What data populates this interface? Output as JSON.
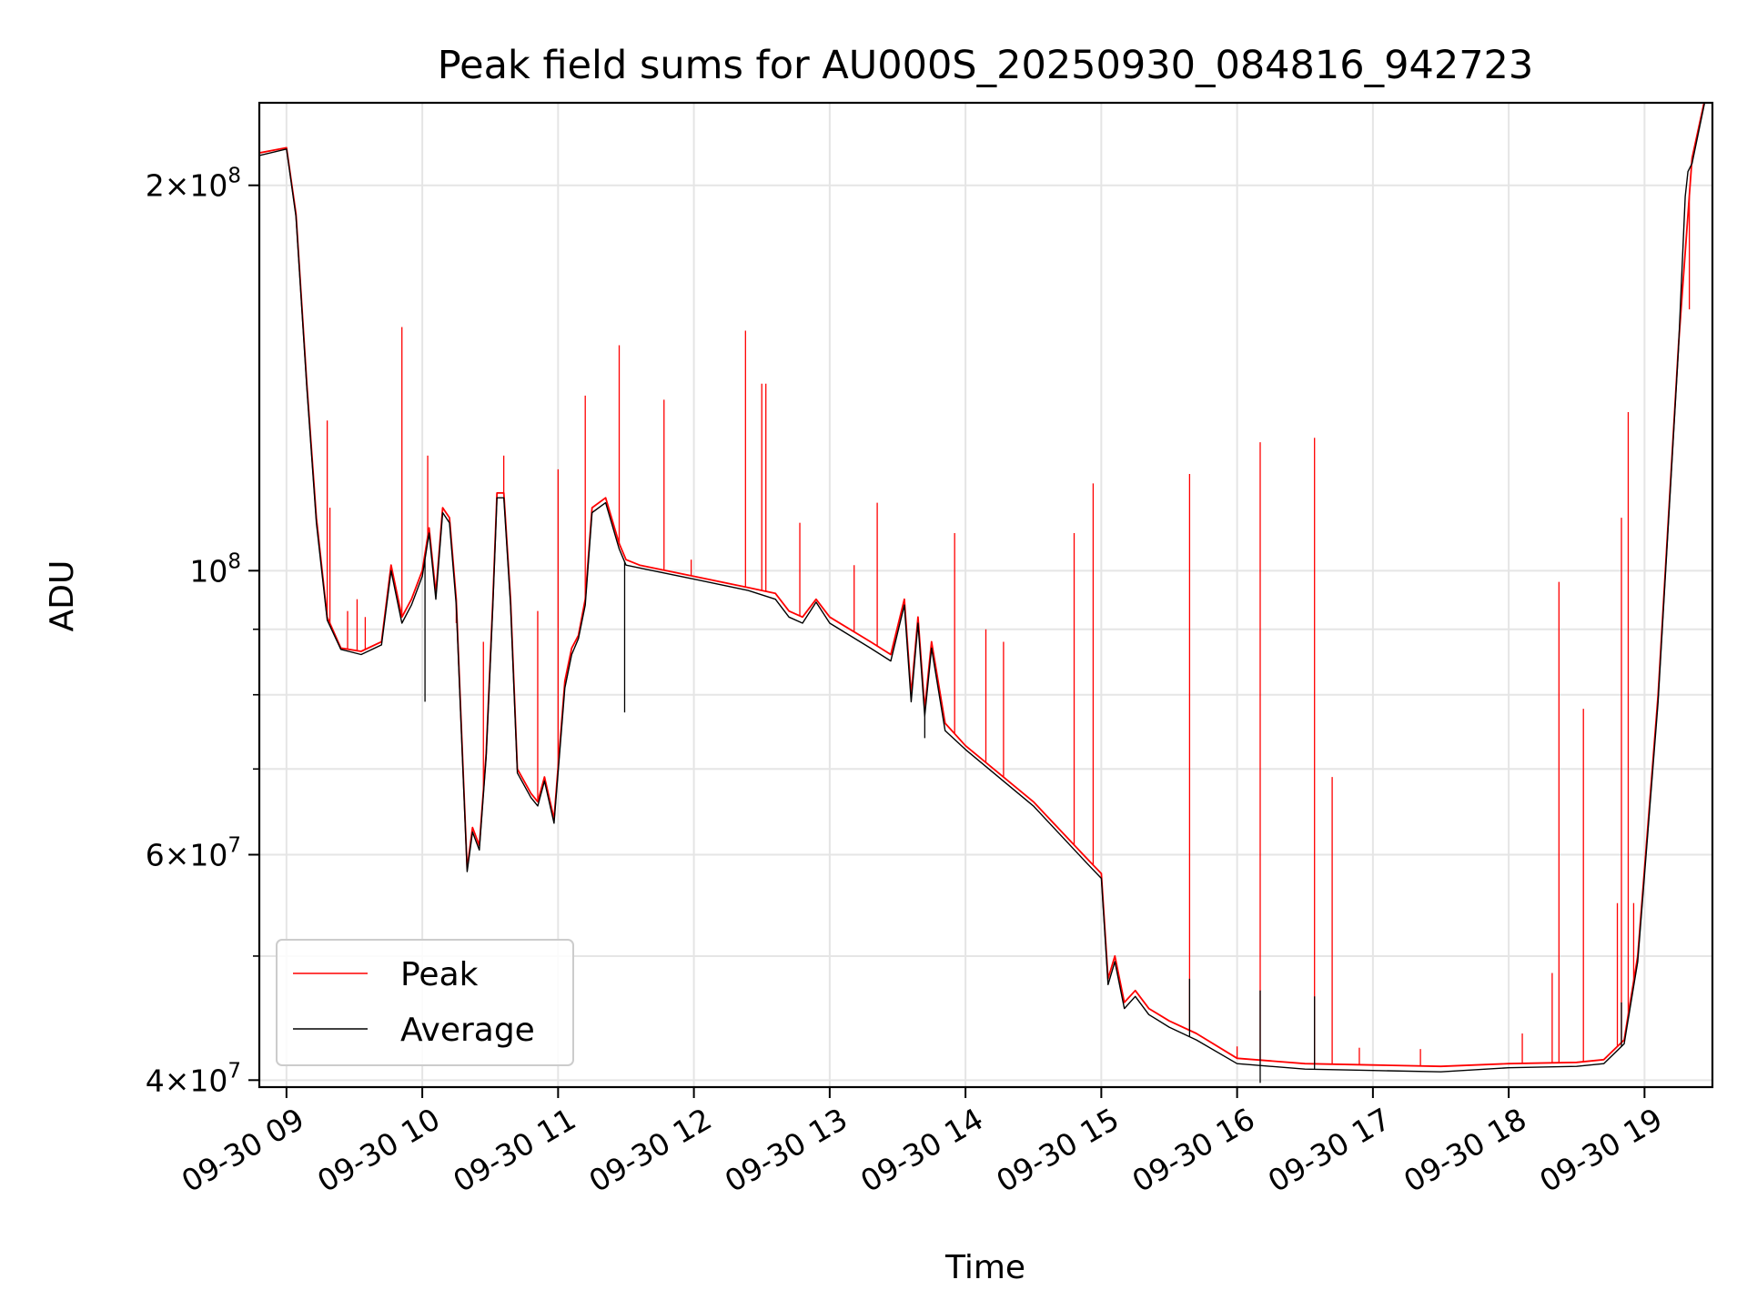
{
  "chart_data": {
    "type": "line",
    "title": "Peak field sums for AU000S_20250930_084816_942723",
    "xlabel": "Time",
    "ylabel": "ADU",
    "x_axis": {
      "unit": "hours (2025-09-30)",
      "range": [
        8.8,
        19.5
      ],
      "ticks": [
        {
          "value": 9,
          "label": "09-30 09"
        },
        {
          "value": 10,
          "label": "09-30 10"
        },
        {
          "value": 11,
          "label": "09-30 11"
        },
        {
          "value": 12,
          "label": "09-30 12"
        },
        {
          "value": 13,
          "label": "09-30 13"
        },
        {
          "value": 14,
          "label": "09-30 14"
        },
        {
          "value": 15,
          "label": "09-30 15"
        },
        {
          "value": 16,
          "label": "09-30 16"
        },
        {
          "value": 17,
          "label": "09-30 17"
        },
        {
          "value": 18,
          "label": "09-30 18"
        },
        {
          "value": 19,
          "label": "09-30 19"
        }
      ]
    },
    "y_axis": {
      "scale": "log",
      "range": [
        39500000,
        232000000
      ],
      "major_ticks": [
        {
          "value": 40000000,
          "mantissa": "4",
          "exponent": "7"
        },
        {
          "value": 60000000,
          "mantissa": "6",
          "exponent": "7"
        },
        {
          "value": 100000000,
          "mantissa": "",
          "exponent": "8"
        },
        {
          "value": 200000000,
          "mantissa": "2",
          "exponent": "8"
        }
      ],
      "minor_ticks": [
        50000000,
        70000000,
        80000000,
        90000000
      ]
    },
    "grid": true,
    "legend_position": "lower-left",
    "series": [
      {
        "name": "Peak",
        "color": "#ff0000",
        "baseline": [
          [
            8.8,
            212000000
          ],
          [
            9.0,
            214000000
          ],
          [
            9.07,
            190000000
          ],
          [
            9.15,
            140000000
          ],
          [
            9.22,
            110000000
          ],
          [
            9.3,
            92000000
          ],
          [
            9.4,
            87000000
          ],
          [
            9.55,
            86500000
          ],
          [
            9.7,
            88000000
          ],
          [
            9.77,
            101000000
          ],
          [
            9.85,
            92000000
          ],
          [
            9.92,
            95000000
          ],
          [
            10.0,
            100000000
          ],
          [
            10.05,
            108000000
          ],
          [
            10.1,
            96000000
          ],
          [
            10.15,
            112000000
          ],
          [
            10.2,
            110000000
          ],
          [
            10.25,
            95000000
          ],
          [
            10.3,
            70000000
          ],
          [
            10.33,
            58500000
          ],
          [
            10.37,
            63000000
          ],
          [
            10.42,
            61000000
          ],
          [
            10.47,
            72000000
          ],
          [
            10.52,
            95000000
          ],
          [
            10.55,
            115000000
          ],
          [
            10.6,
            115000000
          ],
          [
            10.65,
            95000000
          ],
          [
            10.7,
            70000000
          ],
          [
            10.8,
            67000000
          ],
          [
            10.85,
            66000000
          ],
          [
            10.9,
            69000000
          ],
          [
            10.97,
            64000000
          ],
          [
            11.05,
            82000000
          ],
          [
            11.1,
            87000000
          ],
          [
            11.15,
            89000000
          ],
          [
            11.2,
            95000000
          ],
          [
            11.25,
            112000000
          ],
          [
            11.35,
            114000000
          ],
          [
            11.45,
            105000000
          ],
          [
            11.5,
            102000000
          ],
          [
            11.6,
            101000000
          ],
          [
            12.0,
            99000000
          ],
          [
            12.4,
            97000000
          ],
          [
            12.6,
            96000000
          ],
          [
            12.7,
            93000000
          ],
          [
            12.8,
            92000000
          ],
          [
            12.9,
            95000000
          ],
          [
            13.0,
            92000000
          ],
          [
            13.3,
            88000000
          ],
          [
            13.45,
            86000000
          ],
          [
            13.55,
            95000000
          ],
          [
            13.6,
            80000000
          ],
          [
            13.65,
            92000000
          ],
          [
            13.7,
            78000000
          ],
          [
            13.75,
            88000000
          ],
          [
            13.85,
            76000000
          ],
          [
            14.0,
            73000000
          ],
          [
            14.5,
            66000000
          ],
          [
            14.9,
            59500000
          ],
          [
            15.0,
            58000000
          ],
          [
            15.05,
            48000000
          ],
          [
            15.1,
            50000000
          ],
          [
            15.17,
            46000000
          ],
          [
            15.25,
            47000000
          ],
          [
            15.35,
            45500000
          ],
          [
            15.5,
            44500000
          ],
          [
            15.7,
            43500000
          ],
          [
            16.0,
            41600000
          ],
          [
            16.5,
            41200000
          ],
          [
            17.0,
            41100000
          ],
          [
            17.5,
            41000000
          ],
          [
            18.0,
            41200000
          ],
          [
            18.5,
            41300000
          ],
          [
            18.7,
            41500000
          ],
          [
            18.85,
            43000000
          ],
          [
            18.95,
            50000000
          ],
          [
            19.1,
            80000000
          ],
          [
            19.25,
            150000000
          ],
          [
            19.35,
            210000000
          ],
          [
            19.45,
            235000000
          ]
        ],
        "spikes": [
          [
            9.3,
            131000000
          ],
          [
            9.32,
            112000000
          ],
          [
            9.45,
            93000000
          ],
          [
            9.52,
            95000000
          ],
          [
            9.58,
            92000000
          ],
          [
            9.85,
            155000000
          ],
          [
            10.04,
            123000000
          ],
          [
            10.25,
            91000000
          ],
          [
            10.45,
            88000000
          ],
          [
            10.6,
            123000000
          ],
          [
            10.85,
            93000000
          ],
          [
            11.0,
            120000000
          ],
          [
            11.2,
            137000000
          ],
          [
            11.45,
            150000000
          ],
          [
            11.78,
            136000000
          ],
          [
            11.98,
            102000000
          ],
          [
            12.38,
            154000000
          ],
          [
            12.5,
            140000000
          ],
          [
            12.53,
            140000000
          ],
          [
            12.78,
            109000000
          ],
          [
            13.18,
            101000000
          ],
          [
            13.35,
            113000000
          ],
          [
            13.92,
            107000000
          ],
          [
            14.15,
            90000000
          ],
          [
            14.28,
            88000000
          ],
          [
            14.8,
            107000000
          ],
          [
            14.94,
            117000000
          ],
          [
            15.65,
            119000000
          ],
          [
            16.0,
            42500000
          ],
          [
            16.17,
            126000000
          ],
          [
            16.57,
            127000000
          ],
          [
            16.7,
            69000000
          ],
          [
            16.9,
            42400000
          ],
          [
            17.35,
            42300000
          ],
          [
            18.1,
            43500000
          ],
          [
            18.32,
            48500000
          ],
          [
            18.37,
            98000000
          ],
          [
            18.55,
            78000000
          ],
          [
            18.8,
            55000000
          ],
          [
            18.83,
            110000000
          ],
          [
            18.88,
            133000000
          ],
          [
            18.92,
            55000000
          ],
          [
            19.33,
            160000000
          ]
        ]
      },
      {
        "name": "Average",
        "color": "#000000",
        "baseline": [
          [
            8.8,
            211000000
          ],
          [
            9.0,
            213500000
          ],
          [
            9.07,
            189000000
          ],
          [
            9.15,
            139000000
          ],
          [
            9.22,
            109000000
          ],
          [
            9.3,
            91500000
          ],
          [
            9.4,
            86800000
          ],
          [
            9.55,
            86000000
          ],
          [
            9.7,
            87500000
          ],
          [
            9.77,
            100000000
          ],
          [
            9.85,
            91000000
          ],
          [
            9.92,
            94000000
          ],
          [
            10.0,
            99000000
          ],
          [
            10.05,
            107000000
          ],
          [
            10.1,
            95000000
          ],
          [
            10.15,
            111000000
          ],
          [
            10.2,
            109000000
          ],
          [
            10.25,
            94000000
          ],
          [
            10.3,
            69500000
          ],
          [
            10.33,
            58200000
          ],
          [
            10.37,
            62500000
          ],
          [
            10.42,
            60500000
          ],
          [
            10.47,
            71500000
          ],
          [
            10.52,
            94000000
          ],
          [
            10.55,
            114000000
          ],
          [
            10.6,
            114000000
          ],
          [
            10.65,
            94000000
          ],
          [
            10.7,
            69500000
          ],
          [
            10.8,
            66500000
          ],
          [
            10.85,
            65500000
          ],
          [
            10.9,
            68500000
          ],
          [
            10.97,
            63500000
          ],
          [
            11.05,
            81000000
          ],
          [
            11.1,
            86000000
          ],
          [
            11.15,
            88500000
          ],
          [
            11.2,
            94000000
          ],
          [
            11.25,
            111000000
          ],
          [
            11.35,
            113000000
          ],
          [
            11.45,
            104000000
          ],
          [
            11.5,
            101000000
          ],
          [
            11.6,
            100500000
          ],
          [
            12.0,
            98500000
          ],
          [
            12.4,
            96500000
          ],
          [
            12.6,
            95000000
          ],
          [
            12.7,
            92000000
          ],
          [
            12.8,
            91000000
          ],
          [
            12.9,
            94500000
          ],
          [
            13.0,
            91000000
          ],
          [
            13.3,
            87000000
          ],
          [
            13.45,
            85000000
          ],
          [
            13.55,
            94000000
          ],
          [
            13.6,
            79000000
          ],
          [
            13.65,
            91000000
          ],
          [
            13.7,
            77000000
          ],
          [
            13.75,
            87000000
          ],
          [
            13.85,
            75000000
          ],
          [
            14.0,
            72500000
          ],
          [
            14.5,
            65500000
          ],
          [
            14.9,
            59000000
          ],
          [
            15.0,
            57500000
          ],
          [
            15.05,
            47500000
          ],
          [
            15.1,
            49500000
          ],
          [
            15.17,
            45500000
          ],
          [
            15.25,
            46500000
          ],
          [
            15.35,
            45000000
          ],
          [
            15.5,
            44000000
          ],
          [
            15.7,
            43000000
          ],
          [
            16.0,
            41200000
          ],
          [
            16.5,
            40800000
          ],
          [
            17.0,
            40700000
          ],
          [
            17.5,
            40600000
          ],
          [
            18.0,
            40900000
          ],
          [
            18.5,
            41000000
          ],
          [
            18.7,
            41200000
          ],
          [
            18.85,
            42700000
          ],
          [
            18.95,
            49500000
          ],
          [
            19.1,
            79000000
          ],
          [
            19.25,
            149000000
          ],
          [
            19.3,
            196000000
          ],
          [
            19.32,
            205000000
          ],
          [
            19.35,
            208000000
          ],
          [
            19.45,
            234000000
          ]
        ],
        "spikes": [
          [
            15.65,
            48000000
          ],
          [
            16.17,
            47000000
          ],
          [
            16.57,
            46500000
          ],
          [
            16.17,
            39800000
          ],
          [
            18.83,
            46000000
          ],
          [
            13.7,
            74000000
          ],
          [
            10.02,
            79000000
          ],
          [
            11.49,
            77500000
          ]
        ]
      }
    ]
  }
}
